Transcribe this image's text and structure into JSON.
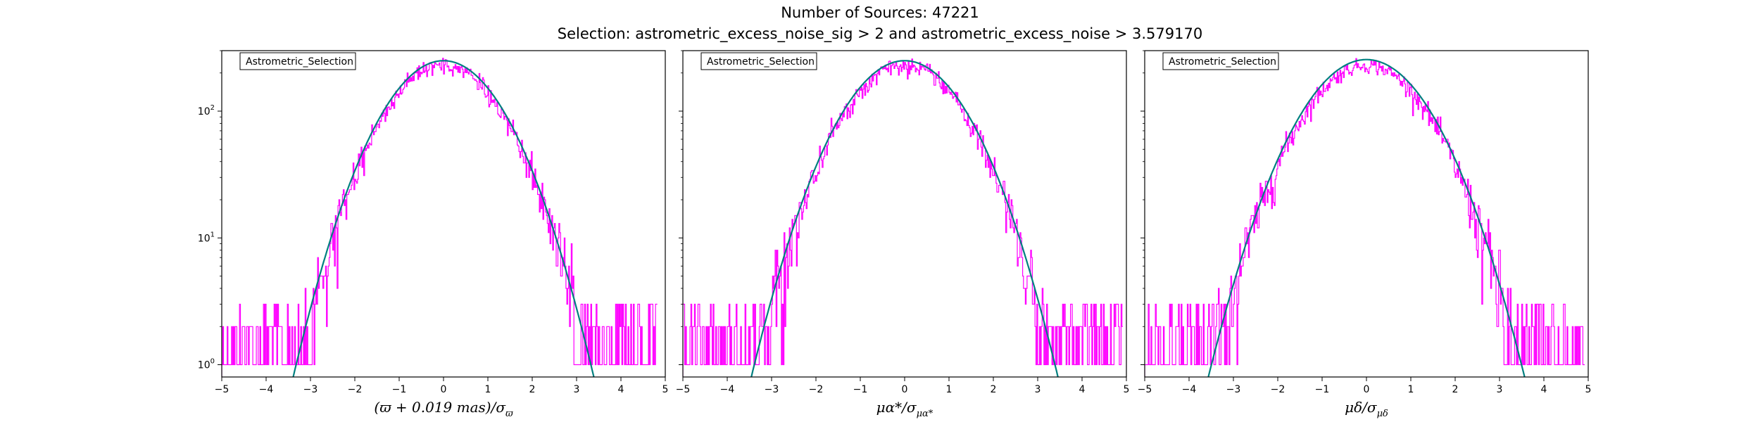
{
  "figure": {
    "title": "Number of Sources: 47221",
    "subtitle": "Selection: astrometric_excess_noise_sig > 2 and astrometric_excess_noise > 3.579170"
  },
  "colors": {
    "histogram": "#ff00ff",
    "model_curve": "#008080",
    "model_curve_tail": "#1f77b4"
  },
  "chart_data": [
    {
      "type": "line",
      "panel_index": 0,
      "legend": "Astrometric_Selection",
      "legend_position": "top-left",
      "xlabel_parts": {
        "main": "(ϖ + 0.019 mas)/σ",
        "sub": "ϖ"
      },
      "xlim": [
        -5,
        5
      ],
      "ylim": [
        0.8,
        300
      ],
      "yscale": "log",
      "x_ticks": [
        "−5",
        "−4",
        "−3",
        "−2",
        "−1",
        "0",
        "1",
        "2",
        "3",
        "4",
        "5"
      ],
      "y_ticks": [
        {
          "base": "10",
          "exp": "0",
          "value": 1
        },
        {
          "base": "10",
          "exp": "1",
          "value": 10
        },
        {
          "base": "10",
          "exp": "2",
          "value": 100
        }
      ],
      "series": [
        {
          "kind": "histogram",
          "bin_width": 0.02,
          "x_range": [
            -5,
            4.8
          ],
          "approx_peak": 230,
          "approx_center": 0.0,
          "approx_sigma": 1.0,
          "approx_floor_counts": 1
        },
        {
          "kind": "gaussian_model",
          "peak": 250,
          "center": 0.0,
          "sigma": 1.0
        }
      ]
    },
    {
      "type": "line",
      "panel_index": 1,
      "legend": "Astrometric_Selection",
      "legend_position": "top-left",
      "xlabel_parts": {
        "main": "μα*/σ",
        "sub": "μα*"
      },
      "xlim": [
        -5,
        5
      ],
      "ylim": [
        0.8,
        300
      ],
      "yscale": "log",
      "x_ticks": [
        "−5",
        "−4",
        "−3",
        "−2",
        "−1",
        "0",
        "1",
        "2",
        "3",
        "4",
        "5"
      ],
      "y_ticks": [],
      "series": [
        {
          "kind": "histogram",
          "bin_width": 0.02,
          "x_range": [
            -5,
            4.9
          ],
          "approx_peak": 230,
          "approx_center": 0.0,
          "approx_sigma": 1.02,
          "approx_floor_counts": 1
        },
        {
          "kind": "gaussian_model",
          "peak": 250,
          "center": 0.0,
          "sigma": 1.02
        }
      ]
    },
    {
      "type": "line",
      "panel_index": 2,
      "legend": "Astrometric_Selection",
      "legend_position": "top-left",
      "xlabel_parts": {
        "main": "μδ/σ",
        "sub": "μδ"
      },
      "xlim": [
        -5,
        5
      ],
      "ylim": [
        0.8,
        300
      ],
      "yscale": "log",
      "x_ticks": [
        "−5",
        "−4",
        "−3",
        "−2",
        "−1",
        "0",
        "1",
        "2",
        "3",
        "4",
        "5"
      ],
      "y_ticks": [],
      "series": [
        {
          "kind": "histogram",
          "bin_width": 0.02,
          "x_range": [
            -5,
            4.9
          ],
          "approx_peak": 230,
          "approx_center": 0.0,
          "approx_sigma": 1.05,
          "approx_floor_counts": 1
        },
        {
          "kind": "gaussian_model",
          "peak": 255,
          "center": 0.0,
          "sigma": 1.05
        }
      ]
    }
  ]
}
